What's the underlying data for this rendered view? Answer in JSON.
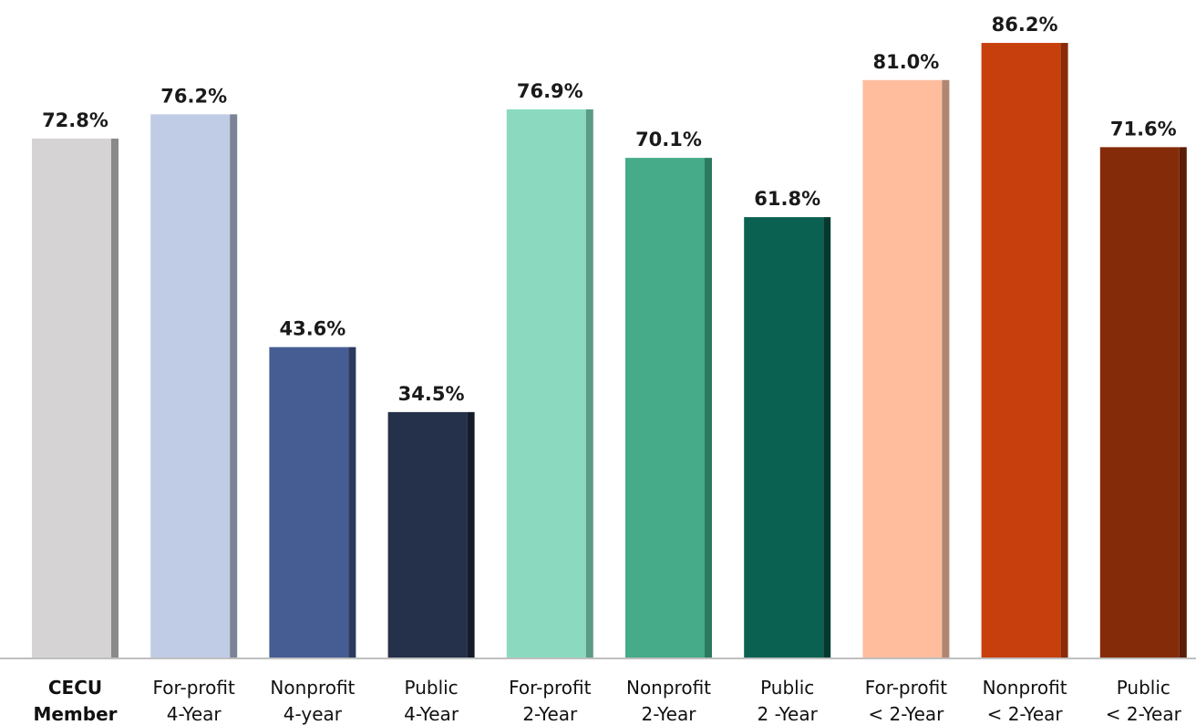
{
  "chart_data": {
    "type": "bar",
    "categories": [
      {
        "line1": "CECU",
        "line2": "Member",
        "bold": true
      },
      {
        "line1": "For-profit",
        "line2": "4-Year",
        "bold": false
      },
      {
        "line1": "Nonprofit",
        "line2": "4-year",
        "bold": false
      },
      {
        "line1": "Public",
        "line2": "4-Year",
        "bold": false
      },
      {
        "line1": "For-profit",
        "line2": "2-Year",
        "bold": false
      },
      {
        "line1": "Nonprofit",
        "line2": "2-Year",
        "bold": false
      },
      {
        "line1": "Public",
        "line2": "2 -Year",
        "bold": false
      },
      {
        "line1": "For-profit",
        "line2": "< 2-Year",
        "bold": false
      },
      {
        "line1": "Nonprofit",
        "line2": "< 2-Year",
        "bold": false
      },
      {
        "line1": "Public",
        "line2": "< 2-Year",
        "bold": false
      }
    ],
    "values": [
      72.8,
      76.2,
      43.6,
      34.5,
      76.9,
      70.1,
      61.8,
      81.0,
      86.2,
      71.6
    ],
    "value_labels": [
      "72.8%",
      "76.2%",
      "43.6%",
      "34.5%",
      "76.9%",
      "70.1%",
      "61.8%",
      "81.0%",
      "86.2%",
      "71.6%"
    ],
    "colors": [
      "#d6d3d4",
      "#c0cbe5",
      "#465d93",
      "#25304a",
      "#8bdac0",
      "#45ab88",
      "#0a6151",
      "#ffbd9e",
      "#c73f0d",
      "#842c09"
    ],
    "edge_colors": [
      "#8a8a8a",
      "#7b8496",
      "#2b3a5e",
      "#151b2b",
      "#5a9c86",
      "#2b7a5f",
      "#053a30",
      "#b08672",
      "#8a2a06",
      "#5a1d05"
    ],
    "ylim": [
      0,
      100
    ],
    "grid": false,
    "legend": "none",
    "axis_color": "#bfbfbf"
  }
}
